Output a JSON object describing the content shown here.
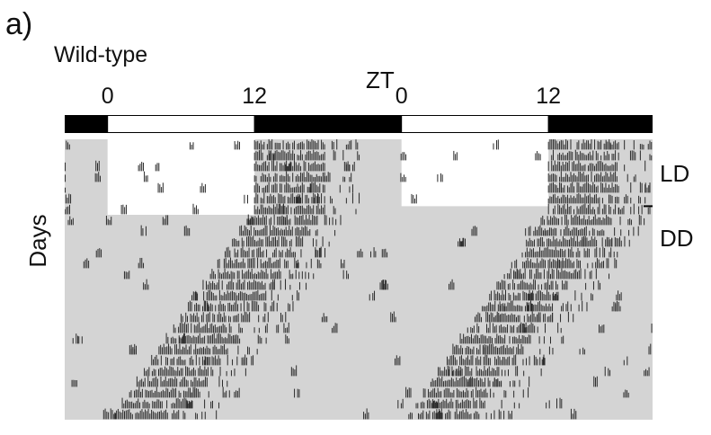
{
  "panel_label": "a)",
  "genotype_label": "Wild-type",
  "chart_data": {
    "type": "actogram",
    "title": "",
    "x_axis_title": "ZT",
    "y_axis_title": "Days",
    "x_ticks": [
      {
        "label": "0",
        "hour": 0
      },
      {
        "label": "12",
        "hour": 12
      },
      {
        "label": "0",
        "hour": 24
      },
      {
        "label": "12",
        "hour": 36
      }
    ],
    "x_range_hours": [
      -3.5,
      44.5
    ],
    "double_plotted": true,
    "lighting_bar": [
      {
        "state": "dark",
        "start_hour": -3.5,
        "end_hour": 0
      },
      {
        "state": "light",
        "start_hour": 0,
        "end_hour": 12
      },
      {
        "state": "dark",
        "start_hour": 12,
        "end_hour": 24
      },
      {
        "state": "light",
        "start_hour": 24,
        "end_hour": 36
      },
      {
        "state": "dark",
        "start_hour": 36,
        "end_hour": 44.5
      }
    ],
    "phases": [
      {
        "label": "LD",
        "start_day": 1,
        "end_day": 7
      },
      {
        "label": "DD",
        "start_day": 8,
        "end_day": 26
      }
    ],
    "days_total": 26,
    "ld_days": 7,
    "activity_onset_ld_hour": 12,
    "free_running_period_hours": 23.4,
    "colors": {
      "dark_bar": "#000000",
      "light_bar": "#ffffff",
      "dark_shading": "#d4d4d4",
      "activity": "#2a2a2a"
    }
  }
}
